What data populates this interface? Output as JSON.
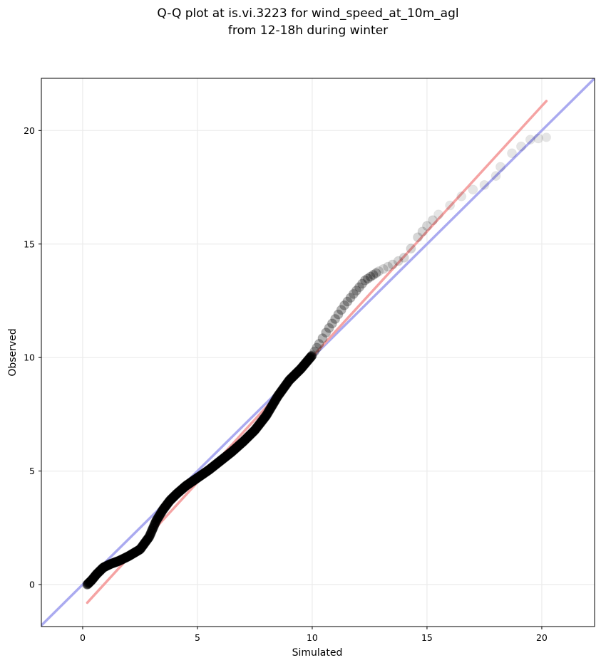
{
  "chart_data": {
    "type": "scatter",
    "title": "Q-Q plot at is.vi.3223 for wind_speed_at_10m_agl",
    "subtitle": "from 12-18h during winter",
    "xlabel": "Simulated",
    "ylabel": "Observed",
    "xlim": [
      -1.8,
      22.3
    ],
    "ylim": [
      -1.85,
      22.3
    ],
    "xticks": [
      0,
      5,
      10,
      15,
      20
    ],
    "yticks": [
      0,
      5,
      10,
      15,
      20
    ],
    "grid": true,
    "reference_lines": [
      {
        "name": "1:1",
        "color": "#aaaaf0",
        "x": [
          -1.8,
          22.3
        ],
        "y": [
          -1.8,
          22.3
        ]
      },
      {
        "name": "fit",
        "color": "#f5a3a3",
        "x": [
          0.2,
          20.2
        ],
        "y": [
          -0.8,
          21.3
        ]
      }
    ],
    "points": {
      "color": "#000000",
      "quantile_curve": {
        "x": [
          0.2,
          0.4,
          0.6,
          0.9,
          1.2,
          1.6,
          2.0,
          2.5,
          2.9,
          3.2,
          3.5,
          3.8,
          4.1,
          4.5,
          5.0,
          5.5,
          6.0,
          6.5,
          7.0,
          7.5,
          8.0,
          8.5,
          9.0,
          9.5,
          10.0,
          10.3,
          10.6,
          11.0,
          11.4,
          11.8,
          12.3,
          12.9,
          13.5,
          14.0,
          14.3,
          14.6,
          15.0,
          15.5,
          16.0,
          16.5,
          17.0,
          17.5,
          18.0,
          18.2,
          18.7,
          19.5,
          20.2
        ],
        "y": [
          0.0,
          0.2,
          0.45,
          0.75,
          0.9,
          1.05,
          1.25,
          1.55,
          2.1,
          2.8,
          3.3,
          3.7,
          4.0,
          4.35,
          4.7,
          5.05,
          5.45,
          5.85,
          6.3,
          6.8,
          7.45,
          8.3,
          9.0,
          9.5,
          10.1,
          10.6,
          11.1,
          11.7,
          12.3,
          12.8,
          13.4,
          13.8,
          14.1,
          14.4,
          14.8,
          15.3,
          15.8,
          16.3,
          16.7,
          17.1,
          17.4,
          17.6,
          18.0,
          18.4,
          19.0,
          19.6,
          19.7
        ]
      }
    }
  }
}
